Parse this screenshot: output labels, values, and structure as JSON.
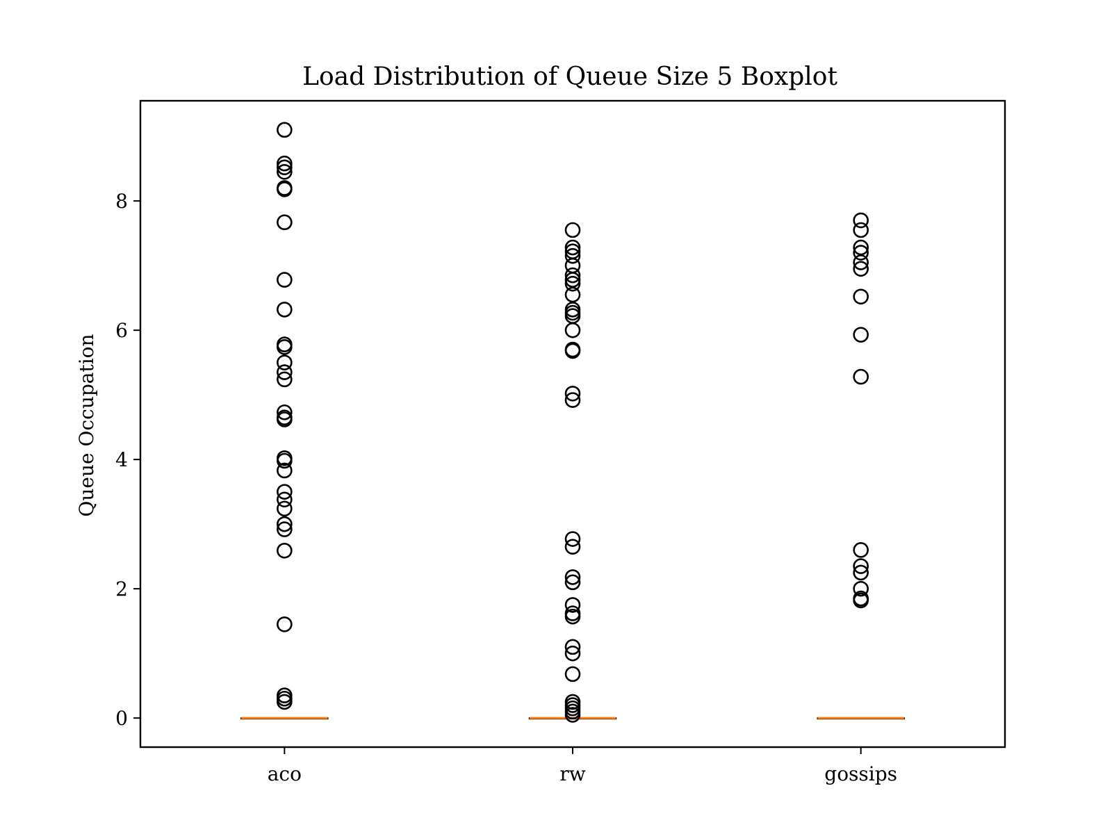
{
  "chart_data": {
    "type": "boxplot",
    "title": "Load Distribution of Queue Size 5 Boxplot",
    "xlabel": "",
    "ylabel": "Queue Occupation",
    "categories": [
      "aco",
      "rw",
      "gossips"
    ],
    "ylim": [
      -0.45,
      9.55
    ],
    "yticks": [
      0,
      2,
      4,
      6,
      8
    ],
    "grid": false,
    "colors": {
      "median": "#ff7f0e",
      "box": "#000000",
      "flier": "#000000",
      "axes": "#000000"
    },
    "series": [
      {
        "category": "aco",
        "q1": 0,
        "median": 0,
        "q3": 0,
        "whisker_low": 0,
        "whisker_high": 0,
        "outliers": [
          9.1,
          8.58,
          8.52,
          8.45,
          8.2,
          8.18,
          7.67,
          6.78,
          6.32,
          5.78,
          5.74,
          5.5,
          5.35,
          5.24,
          4.73,
          4.65,
          4.62,
          4.02,
          3.98,
          3.83,
          3.5,
          3.38,
          3.24,
          3.0,
          2.92,
          2.59,
          1.45,
          0.35,
          0.3,
          0.25
        ]
      },
      {
        "category": "rw",
        "q1": 0,
        "median": 0,
        "q3": 0,
        "whisker_low": 0,
        "whisker_high": 0,
        "outliers": [
          7.55,
          7.28,
          7.22,
          7.15,
          7.0,
          6.85,
          6.78,
          6.72,
          6.55,
          6.32,
          6.27,
          6.22,
          6.0,
          5.7,
          5.68,
          5.02,
          4.92,
          2.77,
          2.65,
          2.18,
          2.1,
          1.75,
          1.62,
          1.57,
          1.1,
          1.0,
          0.68,
          0.25,
          0.2,
          0.15,
          0.1,
          0.05
        ]
      },
      {
        "category": "gossips",
        "q1": 0,
        "median": 0,
        "q3": 0,
        "whisker_low": 0,
        "whisker_high": 0,
        "outliers": [
          7.7,
          7.55,
          7.28,
          7.2,
          7.05,
          6.95,
          6.52,
          5.93,
          5.28,
          2.6,
          2.35,
          2.25,
          2.0,
          1.85,
          1.82
        ]
      }
    ]
  }
}
